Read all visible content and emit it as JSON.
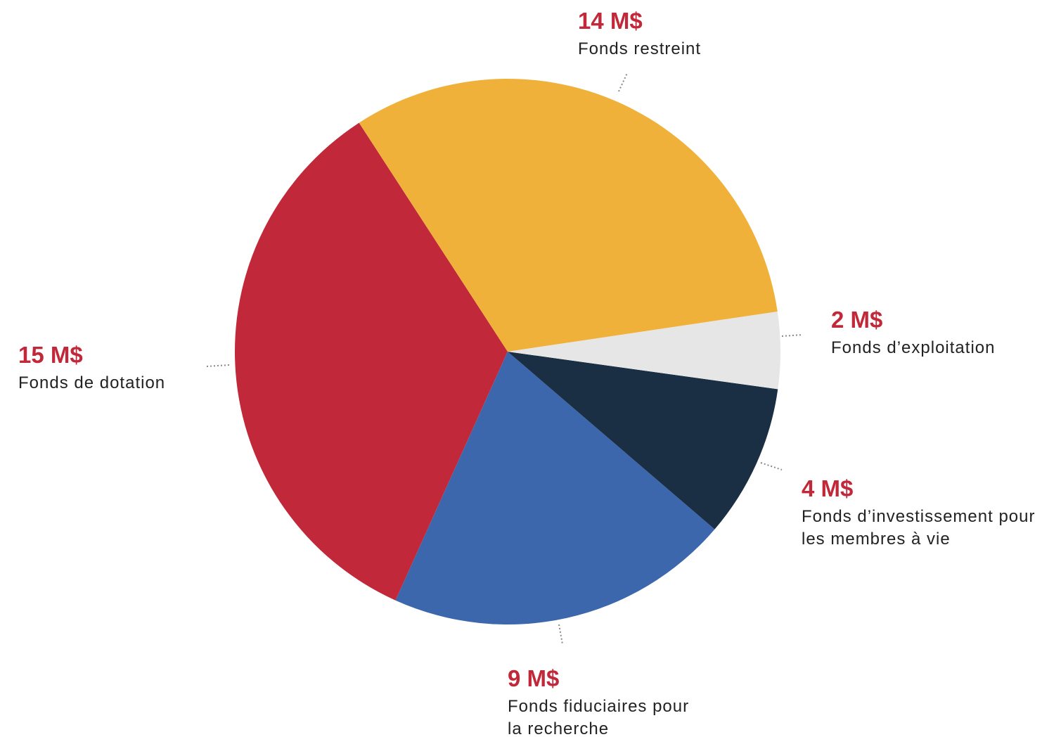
{
  "chart_data": {
    "type": "pie",
    "categories": [
      "Fonds restreint",
      "Fonds d’exploitation",
      "Fonds d’investissement pour les membres à vie",
      "Fonds fiduciaires pour la recherche",
      "Fonds de dotation"
    ],
    "values": [
      14,
      2,
      4,
      9,
      15
    ],
    "value_labels": [
      "14 M$",
      "2 M$",
      "4 M$",
      "9 M$",
      "15 M$"
    ],
    "colors": [
      "#f0b13b",
      "#e6e6e6",
      "#1a2e44",
      "#3c67ac",
      "#c1293a"
    ]
  }
}
